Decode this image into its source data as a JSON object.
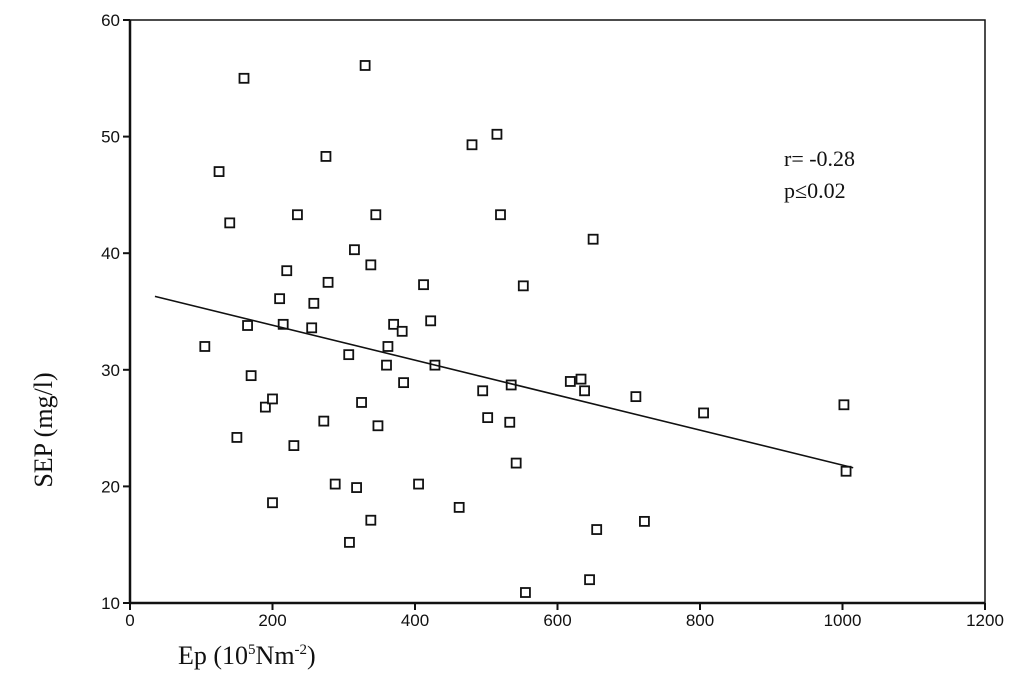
{
  "chart_data": {
    "type": "scatter",
    "title": "",
    "xlabel": {
      "base": "Ep (10",
      "sup1": "5",
      "mid": "Nm",
      "sup2": "-2",
      "end": ")"
    },
    "ylabel": "SEP (mg/l)",
    "xlim": [
      0,
      1200
    ],
    "ylim": [
      10,
      60
    ],
    "x_ticks": [
      0,
      200,
      400,
      600,
      800,
      1000,
      1200
    ],
    "y_ticks": [
      10,
      20,
      30,
      40,
      50,
      60
    ],
    "grid": false,
    "annotation": [
      "r= -0.28",
      "p≤0.02"
    ],
    "trendline": {
      "x": [
        35,
        1015
      ],
      "y": [
        36.3,
        21.6
      ]
    },
    "colors": {
      "marker": "#111111",
      "line": "#111111"
    },
    "series": [
      {
        "points": [
          [
            105,
            32
          ],
          [
            125,
            47
          ],
          [
            140,
            42.6
          ],
          [
            150,
            24.2
          ],
          [
            160,
            55
          ],
          [
            165,
            33.8
          ],
          [
            170,
            29.5
          ],
          [
            190,
            26.8
          ],
          [
            200,
            27.5
          ],
          [
            200,
            18.6
          ],
          [
            210,
            36.1
          ],
          [
            215,
            33.9
          ],
          [
            220,
            38.5
          ],
          [
            230,
            23.5
          ],
          [
            235,
            43.3
          ],
          [
            255,
            33.6
          ],
          [
            258,
            35.7
          ],
          [
            272,
            25.6
          ],
          [
            275,
            48.3
          ],
          [
            278,
            37.5
          ],
          [
            288,
            20.2
          ],
          [
            307,
            31.3
          ],
          [
            308,
            15.2
          ],
          [
            315,
            40.3
          ],
          [
            318,
            19.9
          ],
          [
            325,
            27.2
          ],
          [
            330,
            56.1
          ],
          [
            338,
            17.1
          ],
          [
            338,
            39
          ],
          [
            345,
            43.3
          ],
          [
            348,
            25.2
          ],
          [
            360,
            30.4
          ],
          [
            362,
            32
          ],
          [
            370,
            33.9
          ],
          [
            382,
            33.3
          ],
          [
            384,
            28.9
          ],
          [
            405,
            20.2
          ],
          [
            412,
            37.3
          ],
          [
            422,
            34.2
          ],
          [
            428,
            30.4
          ],
          [
            462,
            18.2
          ],
          [
            480,
            49.3
          ],
          [
            495,
            28.2
          ],
          [
            502,
            25.9
          ],
          [
            515,
            50.2
          ],
          [
            520,
            43.3
          ],
          [
            533,
            25.5
          ],
          [
            535,
            28.7
          ],
          [
            542,
            22
          ],
          [
            552,
            37.2
          ],
          [
            555,
            10.9
          ],
          [
            618,
            29
          ],
          [
            633,
            29.2
          ],
          [
            638,
            28.2
          ],
          [
            645,
            12
          ],
          [
            650,
            41.2
          ],
          [
            655,
            16.3
          ],
          [
            710,
            27.7
          ],
          [
            722,
            17
          ],
          [
            805,
            26.3
          ],
          [
            1002,
            27
          ],
          [
            1005,
            21.3
          ]
        ]
      }
    ]
  }
}
